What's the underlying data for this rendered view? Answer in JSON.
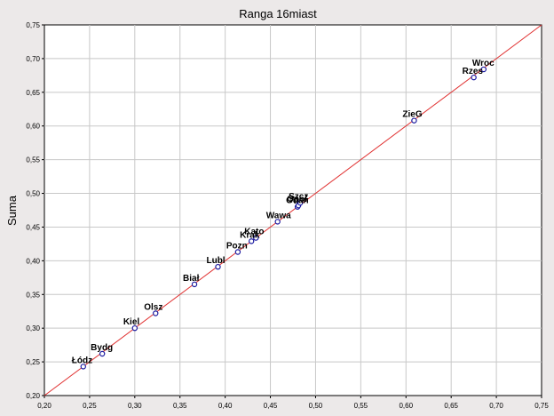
{
  "chart_data": {
    "type": "scatter",
    "title": "Ranga  16miast",
    "xlabel": "",
    "ylabel": "Suma",
    "xlim": [
      0.2,
      0.75
    ],
    "ylim": [
      0.2,
      0.75
    ],
    "x_ticks": [
      "0,20",
      "0,25",
      "0,30",
      "0,35",
      "0,40",
      "0,45",
      "0,50",
      "0,55",
      "0,60",
      "0,65",
      "0,70",
      "0,75"
    ],
    "y_ticks": [
      "0,20",
      "0,25",
      "0,30",
      "0,35",
      "0,40",
      "0,45",
      "0,50",
      "0,55",
      "0,60",
      "0,65",
      "0,70",
      "0,75"
    ],
    "grid": true,
    "colors": {
      "background": "#ece9e9",
      "plot_bg": "#ffffff",
      "grid": "#c8c8c8",
      "line": "#e03030",
      "point": "#1a1aa0",
      "text": "#000000"
    },
    "fit_line": {
      "from": [
        0.2,
        0.2
      ],
      "to": [
        0.75,
        0.75
      ]
    },
    "points": [
      {
        "label": "Łódz",
        "x": 0.243,
        "y": 0.243
      },
      {
        "label": "Bydg",
        "x": 0.264,
        "y": 0.262
      },
      {
        "label": "Kiel",
        "x": 0.3,
        "y": 0.3
      },
      {
        "label": "Olsz",
        "x": 0.323,
        "y": 0.322
      },
      {
        "label": "Biał",
        "x": 0.366,
        "y": 0.365
      },
      {
        "label": "Lubl",
        "x": 0.392,
        "y": 0.391
      },
      {
        "label": "Pozn",
        "x": 0.414,
        "y": 0.413
      },
      {
        "label": "Krak",
        "x": 0.429,
        "y": 0.429
      },
      {
        "label": "Kato",
        "x": 0.434,
        "y": 0.434
      },
      {
        "label": "Wawa",
        "x": 0.458,
        "y": 0.458
      },
      {
        "label": "Gdań",
        "x": 0.48,
        "y": 0.48
      },
      {
        "label": "Opol",
        "x": 0.481,
        "y": 0.482
      },
      {
        "label": "Szcz",
        "x": 0.483,
        "y": 0.486
      },
      {
        "label": "ZieG",
        "x": 0.609,
        "y": 0.608
      },
      {
        "label": "Rzes",
        "x": 0.675,
        "y": 0.672
      },
      {
        "label": "Wroc",
        "x": 0.686,
        "y": 0.684
      }
    ]
  }
}
